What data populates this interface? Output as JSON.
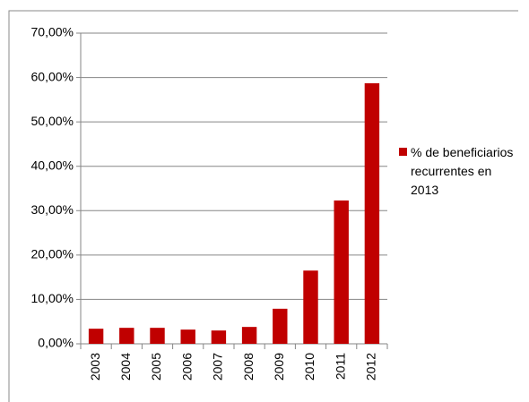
{
  "chart_data": {
    "type": "bar",
    "categories": [
      "2003",
      "2004",
      "2005",
      "2006",
      "2007",
      "2008",
      "2009",
      "2010",
      "2011",
      "2012"
    ],
    "series": [
      {
        "name": "% de beneficiarios recurrentes en 2013",
        "color": "#c00000",
        "values": [
          3.4,
          3.6,
          3.6,
          3.2,
          3.0,
          3.8,
          7.9,
          16.5,
          32.3,
          58.7
        ]
      }
    ],
    "ylim": [
      0,
      70
    ],
    "yticks": [
      {
        "value": 0,
        "label": "0,00%"
      },
      {
        "value": 10,
        "label": "10,00%"
      },
      {
        "value": 20,
        "label": "20,00%"
      },
      {
        "value": 30,
        "label": "30,00%"
      },
      {
        "value": 40,
        "label": "40,00%"
      },
      {
        "value": 50,
        "label": "50,00%"
      },
      {
        "value": 60,
        "label": "60,00%"
      },
      {
        "value": 70,
        "label": "70,00%"
      }
    ],
    "grid": true,
    "legend": "right"
  }
}
